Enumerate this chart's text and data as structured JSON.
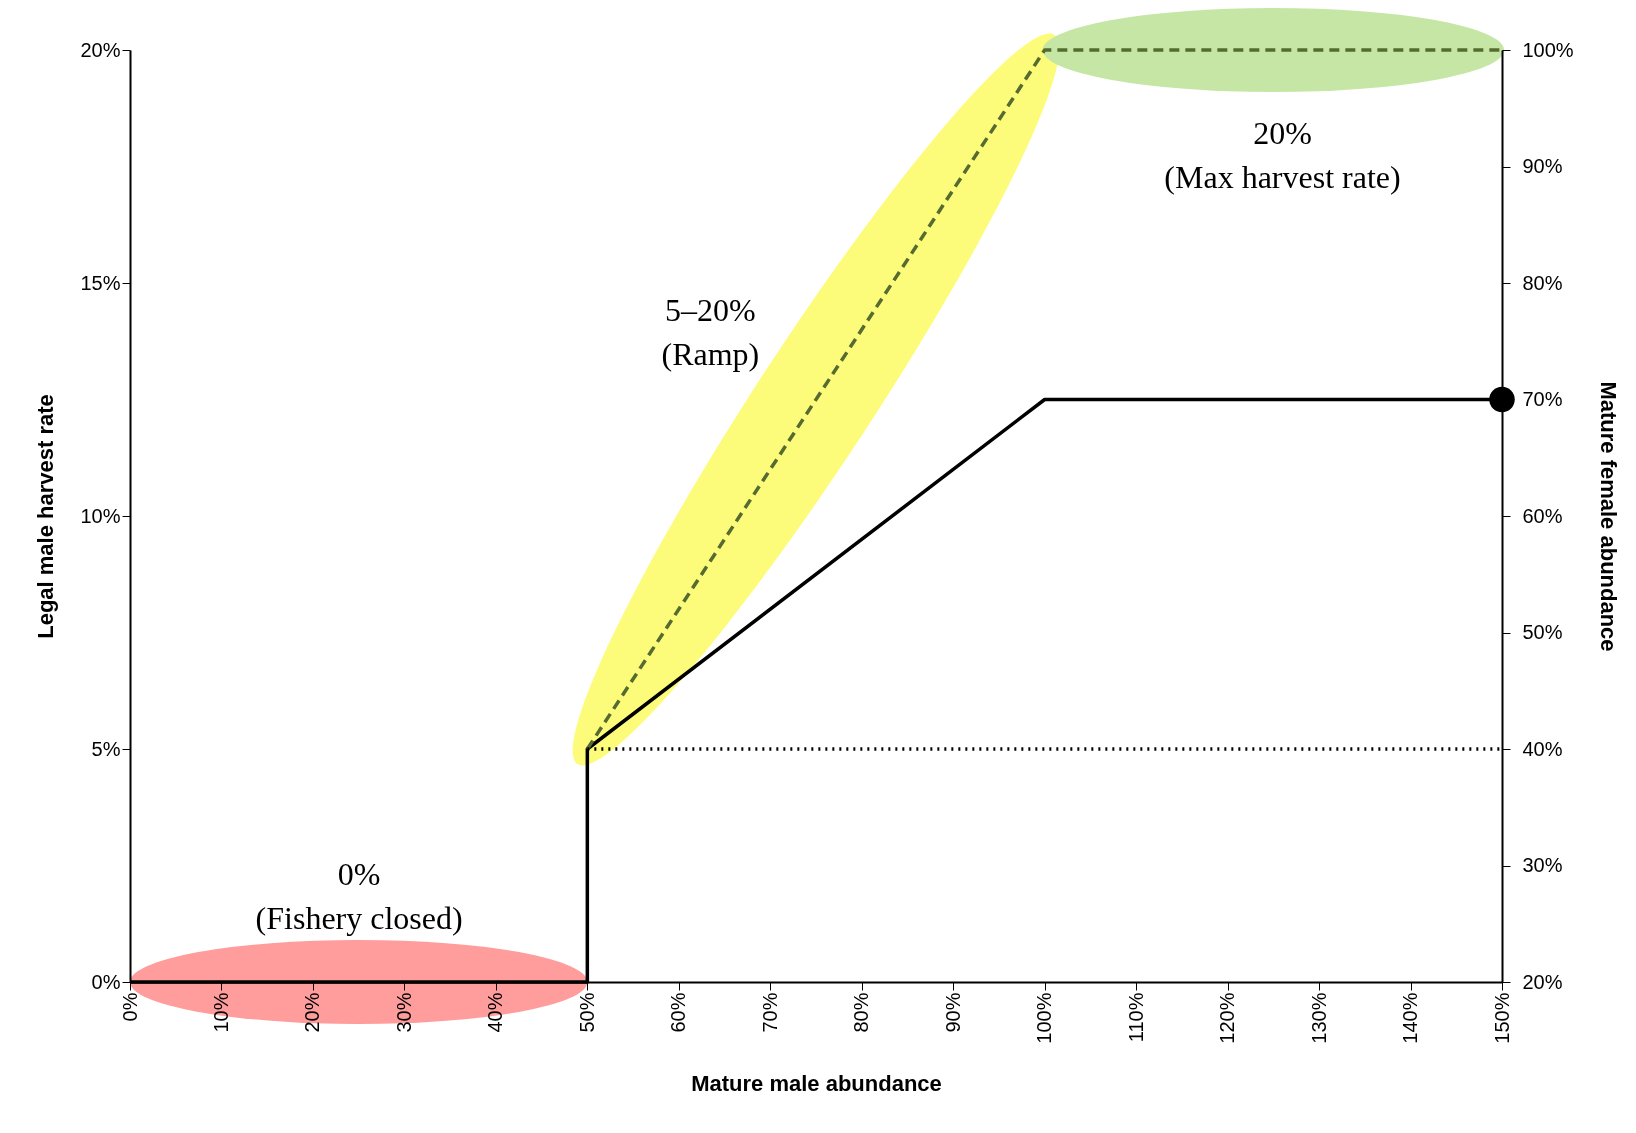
{
  "chart_data": {
    "type": "line",
    "xlabel": "Mature male abundance",
    "ylabel": "Legal male harvest rate",
    "y2label": "Mature female abundance",
    "marker": "none",
    "grid": false,
    "series": [
      {
        "color": "#000000",
        "line_style": "solid",
        "x": [
          0,
          50,
          50,
          100,
          150
        ],
        "values": [
          0,
          0,
          5,
          12.5,
          12.5
        ]
      },
      {
        "color": "#556b2f",
        "line_style": "dashed",
        "x": [
          50,
          100,
          150
        ],
        "values": [
          5,
          20,
          20
        ]
      },
      {
        "color": "#000000",
        "line_style": "dotted",
        "x": [
          50,
          150
        ],
        "values": [
          5,
          5
        ]
      },
      {
        "type": "scatter",
        "color": "#000000",
        "axis": "y2",
        "marker": "circle",
        "x": [
          150
        ],
        "values": [
          70
        ]
      }
    ],
    "xlim": [
      0,
      150
    ],
    "xticks": [
      {
        "value": 0,
        "label": "0%"
      },
      {
        "value": 10,
        "label": "10%"
      },
      {
        "value": 20,
        "label": "20%"
      },
      {
        "value": 30,
        "label": "30%"
      },
      {
        "value": 40,
        "label": "40%"
      },
      {
        "value": 50,
        "label": "50%"
      },
      {
        "value": 60,
        "label": "60%"
      },
      {
        "value": 70,
        "label": "70%"
      },
      {
        "value": 80,
        "label": "80%"
      },
      {
        "value": 90,
        "label": "90%"
      },
      {
        "value": 100,
        "label": "100%"
      },
      {
        "value": 110,
        "label": "110%"
      },
      {
        "value": 120,
        "label": "120%"
      },
      {
        "value": 130,
        "label": "130%"
      },
      {
        "value": 140,
        "label": "140%"
      },
      {
        "value": 150,
        "label": "150%"
      }
    ],
    "ylim": [
      0,
      20
    ],
    "yticks": [
      {
        "value": 0,
        "label": "0%"
      },
      {
        "value": 5,
        "label": "5%"
      },
      {
        "value": 10,
        "label": "10%"
      },
      {
        "value": 15,
        "label": "15%"
      },
      {
        "value": 20,
        "label": "20%"
      }
    ],
    "y2lim": [
      20,
      100
    ],
    "y2ticks": [
      {
        "value": 20,
        "label": "20%"
      },
      {
        "value": 30,
        "label": "30%"
      },
      {
        "value": 40,
        "label": "40%"
      },
      {
        "value": 50,
        "label": "50%"
      },
      {
        "value": 60,
        "label": "60%"
      },
      {
        "value": 70,
        "label": "70%"
      },
      {
        "value": 80,
        "label": "80%"
      },
      {
        "value": 90,
        "label": "90%"
      },
      {
        "value": 100,
        "label": "100%"
      }
    ],
    "annotations": [
      "0%\n(Fishery closed)",
      "5–20%\n(Ramp)",
      "20%\n(Max harvest rate)"
    ]
  }
}
